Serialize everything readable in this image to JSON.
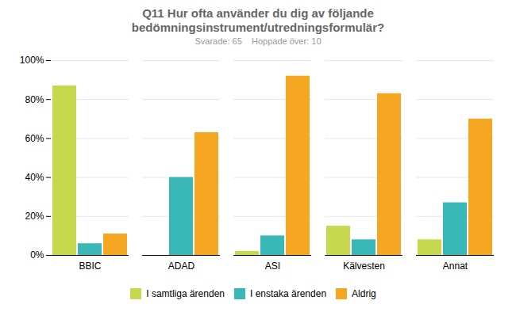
{
  "chart_data": {
    "type": "bar",
    "title": "Q11 Hur ofta använder du dig av följande bedömningsinstrument/utredningsformulär?",
    "subtitle": "Svarade: 65    Hoppade över: 10",
    "categories": [
      "BBIC",
      "ADAD",
      "ASI",
      "Kälvesten",
      "Annat"
    ],
    "series": [
      {
        "name": "I samtliga ärenden",
        "color": "#c5d84e",
        "values": [
          87,
          0,
          2,
          15,
          8
        ]
      },
      {
        "name": "I enstaka ärenden",
        "color": "#3ab8b8",
        "values": [
          6,
          40,
          10,
          8,
          27
        ]
      },
      {
        "name": "Aldrig",
        "color": "#f5a623",
        "values": [
          11,
          63,
          92,
          83,
          70
        ]
      }
    ],
    "ylim": [
      0,
      100
    ],
    "yticks": [
      {
        "value": 0,
        "label": "0%"
      },
      {
        "value": 20,
        "label": "20%"
      },
      {
        "value": 40,
        "label": "40%"
      },
      {
        "value": 60,
        "label": "60%"
      },
      {
        "value": 80,
        "label": "80%"
      },
      {
        "value": 100,
        "label": "100%"
      }
    ],
    "grid": true,
    "legend": "bottom"
  }
}
